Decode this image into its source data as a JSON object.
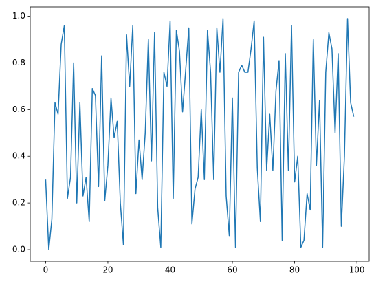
{
  "chart_data": {
    "type": "line",
    "x": [
      0,
      1,
      2,
      3,
      4,
      5,
      6,
      7,
      8,
      9,
      10,
      11,
      12,
      13,
      14,
      15,
      16,
      17,
      18,
      19,
      20,
      21,
      22,
      23,
      24,
      25,
      26,
      27,
      28,
      29,
      30,
      31,
      32,
      33,
      34,
      35,
      36,
      37,
      38,
      39,
      40,
      41,
      42,
      43,
      44,
      45,
      46,
      47,
      48,
      49,
      50,
      51,
      52,
      53,
      54,
      55,
      56,
      57,
      58,
      59,
      60,
      61,
      62,
      63,
      64,
      65,
      66,
      67,
      68,
      69,
      70,
      71,
      72,
      73,
      74,
      75,
      76,
      77,
      78,
      79,
      80,
      81,
      82,
      83,
      84,
      85,
      86,
      87,
      88,
      89,
      90,
      91,
      92,
      93,
      94,
      95,
      96,
      97,
      98,
      99
    ],
    "series": [
      {
        "color": "#1f77b4",
        "values": [
          0.3,
          0.0,
          0.13,
          0.63,
          0.58,
          0.88,
          0.96,
          0.22,
          0.31,
          0.8,
          0.2,
          0.63,
          0.23,
          0.31,
          0.12,
          0.69,
          0.66,
          0.27,
          0.83,
          0.21,
          0.36,
          0.65,
          0.48,
          0.55,
          0.2,
          0.02,
          0.92,
          0.7,
          0.96,
          0.24,
          0.47,
          0.3,
          0.5,
          0.9,
          0.38,
          0.93,
          0.18,
          0.01,
          0.76,
          0.7,
          0.98,
          0.22,
          0.94,
          0.85,
          0.59,
          0.77,
          0.95,
          0.11,
          0.26,
          0.31,
          0.6,
          0.3,
          0.94,
          0.76,
          0.3,
          0.95,
          0.76,
          0.99,
          0.23,
          0.06,
          0.65,
          0.01,
          0.76,
          0.79,
          0.76,
          0.76,
          0.86,
          0.98,
          0.35,
          0.12,
          0.91,
          0.34,
          0.58,
          0.34,
          0.68,
          0.81,
          0.04,
          0.84,
          0.34,
          0.96,
          0.29,
          0.4,
          0.01,
          0.04,
          0.24,
          0.17,
          0.9,
          0.36,
          0.64,
          0.01,
          0.76,
          0.93,
          0.86,
          0.5,
          0.84,
          0.1,
          0.4,
          0.99,
          0.63,
          0.57
        ]
      }
    ],
    "xlim": [
      -4.95,
      103.95
    ],
    "ylim": [
      -0.05,
      1.04
    ],
    "xticks": [
      0,
      20,
      40,
      60,
      80,
      100
    ],
    "yticks": [
      {
        "value": 0,
        "label": "0.0"
      },
      {
        "value": 0.2,
        "label": "0.2"
      },
      {
        "value": 0.4,
        "label": "0.4"
      },
      {
        "value": 0.6,
        "label": "0.6"
      },
      {
        "value": 0.8,
        "label": "0.8"
      },
      {
        "value": 1,
        "label": "1.0"
      }
    ]
  }
}
